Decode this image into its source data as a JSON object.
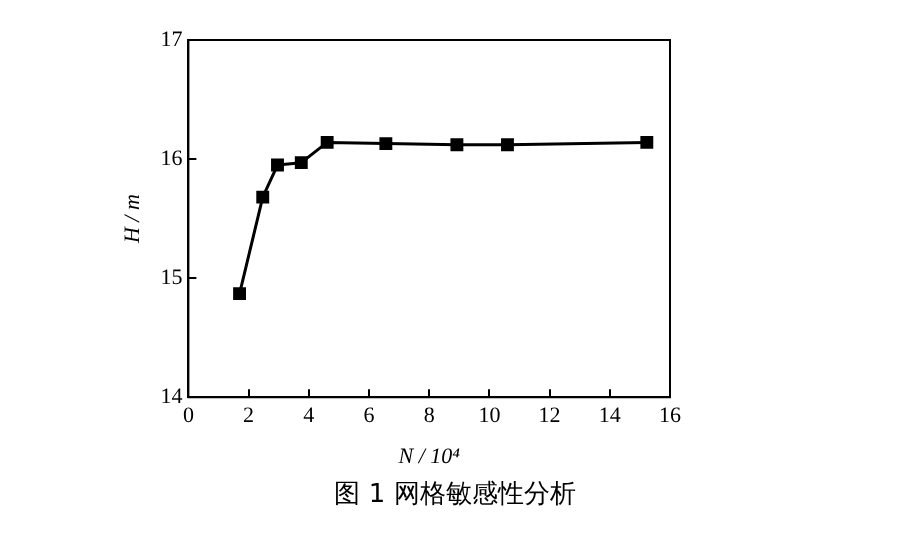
{
  "chart_data": {
    "type": "line",
    "xlabel": "N / 10⁴",
    "ylabel": "H / m",
    "x": [
      1.7,
      2.47,
      2.96,
      3.75,
      4.61,
      6.56,
      8.92,
      10.6,
      15.23
    ],
    "series": [
      {
        "color": "#000000",
        "values": [
          14.87,
          15.68,
          15.95,
          15.97,
          16.14,
          16.13,
          16.12,
          16.12,
          16.14
        ]
      }
    ],
    "xlim": [
      0,
      16
    ],
    "xticks": [
      0,
      2,
      4,
      6,
      8,
      10,
      12,
      14,
      16
    ],
    "ylim": [
      14,
      17
    ],
    "yticks": [
      14,
      15,
      16,
      17
    ],
    "marker": "square",
    "line_style": "solid",
    "grid": false,
    "legend": false,
    "annotations": [
      "图 1 网格敏感性分析"
    ]
  }
}
